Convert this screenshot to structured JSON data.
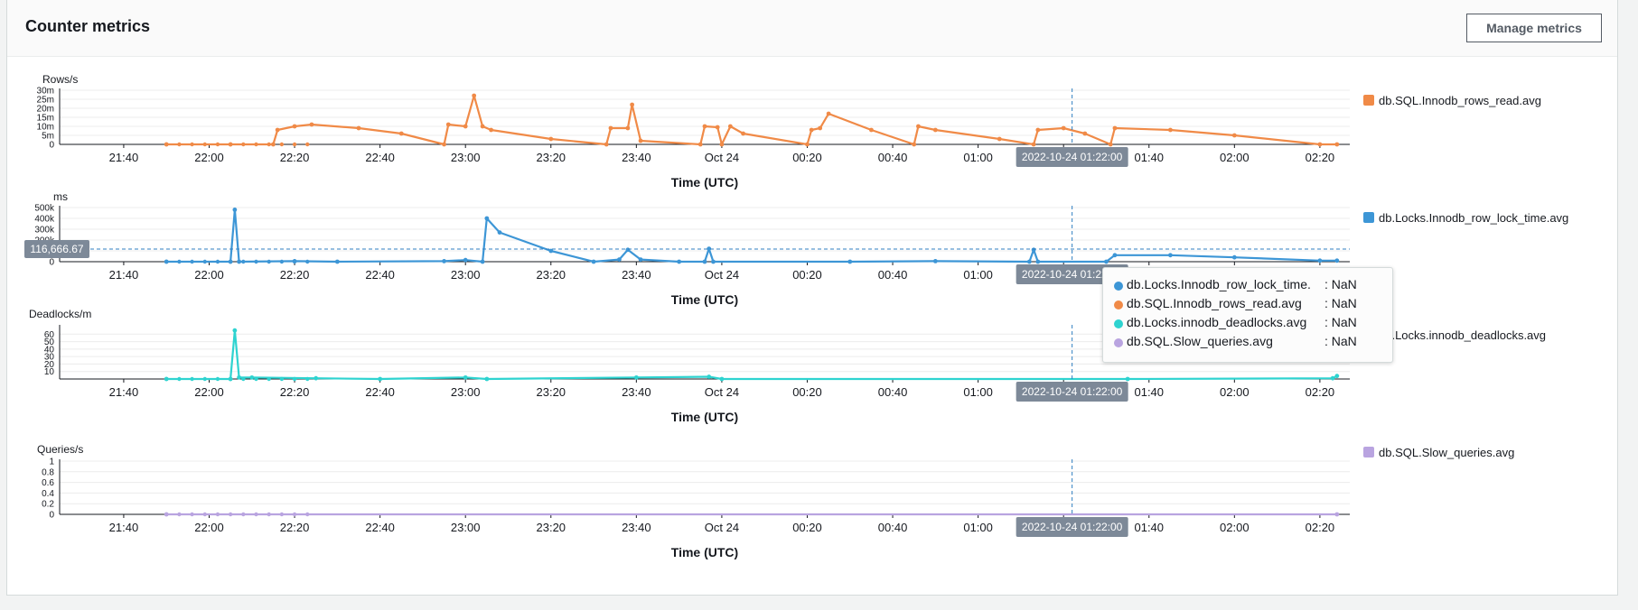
{
  "panel": {
    "title": "Counter metrics",
    "manage_button": "Manage metrics"
  },
  "x_ticks": [
    "21:40",
    "22:00",
    "22:20",
    "22:40",
    "23:00",
    "23:20",
    "23:40",
    "Oct 24",
    "00:20",
    "00:40",
    "01:00",
    "01:20",
    "01:40",
    "02:00",
    "02:20"
  ],
  "cursor_label": "2022-10-24 01:22:00",
  "hover_value_label": "116,666.67",
  "tooltip": {
    "rows": [
      {
        "name": "db.Locks.Innodb_row_lock_time.",
        "value": ": NaN",
        "color": "#3d96d6"
      },
      {
        "name": "db.SQL.Innodb_rows_read.avg",
        "value": ": NaN",
        "color": "#f08a47"
      },
      {
        "name": "db.Locks.innodb_deadlocks.avg",
        "value": ": NaN",
        "color": "#2ed3d0"
      },
      {
        "name": "db.SQL.Slow_queries.avg",
        "value": ": NaN",
        "color": "#b9a4e0"
      }
    ]
  },
  "chart_data": [
    {
      "type": "line",
      "unit_label": "Rows/s",
      "xlabel": "Time (UTC)",
      "ylim": [
        0,
        30000000
      ],
      "y_ticks": [
        "0",
        "5m",
        "10m",
        "15m",
        "20m",
        "25m",
        "30m"
      ],
      "color": "#f08a47",
      "series": [
        {
          "name": "db.SQL.Innodb_rows_read.avg",
          "points": [
            [
              "21:50",
              0
            ],
            [
              "22:05",
              0
            ],
            [
              "22:15",
              0
            ],
            [
              "22:16",
              8000000
            ],
            [
              "22:20",
              10000000
            ],
            [
              "22:24",
              11000000
            ],
            [
              "22:35",
              9000000
            ],
            [
              "22:45",
              6000000
            ],
            [
              "22:55",
              0
            ],
            [
              "22:56",
              11000000
            ],
            [
              "23:00",
              10000000
            ],
            [
              "23:02",
              27000000
            ],
            [
              "23:04",
              10000000
            ],
            [
              "23:06",
              8000000
            ],
            [
              "23:20",
              3000000
            ],
            [
              "23:33",
              0
            ],
            [
              "23:34",
              9000000
            ],
            [
              "23:38",
              9000000
            ],
            [
              "23:39",
              22000000
            ],
            [
              "23:41",
              2000000
            ],
            [
              "23:55",
              0
            ],
            [
              "23:56",
              10000000
            ],
            [
              "23:59",
              9500000
            ],
            [
              "00:00",
              0
            ],
            [
              "00:02",
              10000000
            ],
            [
              "00:05",
              6000000
            ],
            [
              "00:20",
              0
            ],
            [
              "00:21",
              8000000
            ],
            [
              "00:23",
              9000000
            ],
            [
              "00:25",
              17000000
            ],
            [
              "00:35",
              8000000
            ],
            [
              "00:45",
              0
            ],
            [
              "00:46",
              10000000
            ],
            [
              "00:50",
              8000000
            ],
            [
              "01:05",
              3000000
            ],
            [
              "01:13",
              0
            ],
            [
              "01:14",
              8000000
            ],
            [
              "01:20",
              9000000
            ],
            [
              "01:25",
              6000000
            ],
            [
              "01:31",
              0
            ],
            [
              "01:32",
              9000000
            ],
            [
              "01:45",
              8000000
            ],
            [
              "02:00",
              5000000
            ],
            [
              "02:20",
              0
            ],
            [
              "02:24",
              0
            ]
          ]
        }
      ]
    },
    {
      "type": "line",
      "unit_label": "ms",
      "xlabel": "Time (UTC)",
      "ylim": [
        0,
        500000
      ],
      "y_ticks": [
        "0",
        "100k",
        "200k",
        "300k",
        "400k",
        "500k"
      ],
      "color": "#3d96d6",
      "series": [
        {
          "name": "db.Locks.Innodb_row_lock_time.avg",
          "points": [
            [
              "21:50",
              0
            ],
            [
              "22:05",
              0
            ],
            [
              "22:06",
              480000
            ],
            [
              "22:07",
              0
            ],
            [
              "22:20",
              5000
            ],
            [
              "22:30",
              0
            ],
            [
              "22:55",
              5000
            ],
            [
              "23:00",
              15000
            ],
            [
              "23:04",
              0
            ],
            [
              "23:05",
              400000
            ],
            [
              "23:08",
              270000
            ],
            [
              "23:20",
              100000
            ],
            [
              "23:30",
              0
            ],
            [
              "23:36",
              20000
            ],
            [
              "23:38",
              110000
            ],
            [
              "23:41",
              20000
            ],
            [
              "23:50",
              0
            ],
            [
              "23:56",
              0
            ],
            [
              "23:57",
              120000
            ],
            [
              "23:58",
              0
            ],
            [
              "00:30",
              0
            ],
            [
              "00:50",
              5000
            ],
            [
              "01:12",
              0
            ],
            [
              "01:13",
              110000
            ],
            [
              "01:14",
              0
            ],
            [
              "01:30",
              0
            ],
            [
              "01:32",
              60000
            ],
            [
              "01:45",
              60000
            ],
            [
              "02:00",
              40000
            ],
            [
              "02:20",
              10000
            ],
            [
              "02:24",
              10000
            ]
          ]
        }
      ]
    },
    {
      "type": "line",
      "unit_label": "Deadlocks/m",
      "xlabel": "Time (UTC)",
      "ylim": [
        0,
        70
      ],
      "y_ticks": [
        "10",
        "20",
        "30",
        "40",
        "50",
        "60"
      ],
      "color": "#2ed3d0",
      "series": [
        {
          "name": "db.Locks.innodb_deadlocks.avg",
          "points": [
            [
              "21:50",
              0
            ],
            [
              "22:05",
              0
            ],
            [
              "22:06",
              65
            ],
            [
              "22:07",
              2
            ],
            [
              "22:10",
              2
            ],
            [
              "22:25",
              1
            ],
            [
              "22:40",
              0
            ],
            [
              "23:00",
              2
            ],
            [
              "23:05",
              0
            ],
            [
              "23:40",
              2
            ],
            [
              "23:57",
              3
            ],
            [
              "24:00",
              0
            ],
            [
              "01:35",
              0
            ],
            [
              "02:23",
              1
            ],
            [
              "02:24",
              4
            ]
          ]
        }
      ]
    },
    {
      "type": "line",
      "unit_label": "Queries/s",
      "xlabel": "Time (UTC)",
      "ylim": [
        0,
        1
      ],
      "y_ticks": [
        "0",
        "0.2",
        "0.4",
        "0.6",
        "0.8",
        "1"
      ],
      "color": "#b9a4e0",
      "series": [
        {
          "name": "db.SQL.Slow_queries.avg",
          "points": [
            [
              "21:50",
              0
            ],
            [
              "02:24",
              0
            ]
          ]
        }
      ]
    }
  ],
  "legend": [
    {
      "label": "db.SQL.Innodb_rows_read.avg",
      "color": "#f08a47"
    },
    {
      "label": "db.Locks.Innodb_row_lock_time.avg",
      "color": "#3d96d6"
    },
    {
      "label": "db.Locks.innodb_deadlocks.avg",
      "color": "#2ed3d0"
    },
    {
      "label": "db.SQL.Slow_queries.avg",
      "color": "#b9a4e0"
    }
  ]
}
